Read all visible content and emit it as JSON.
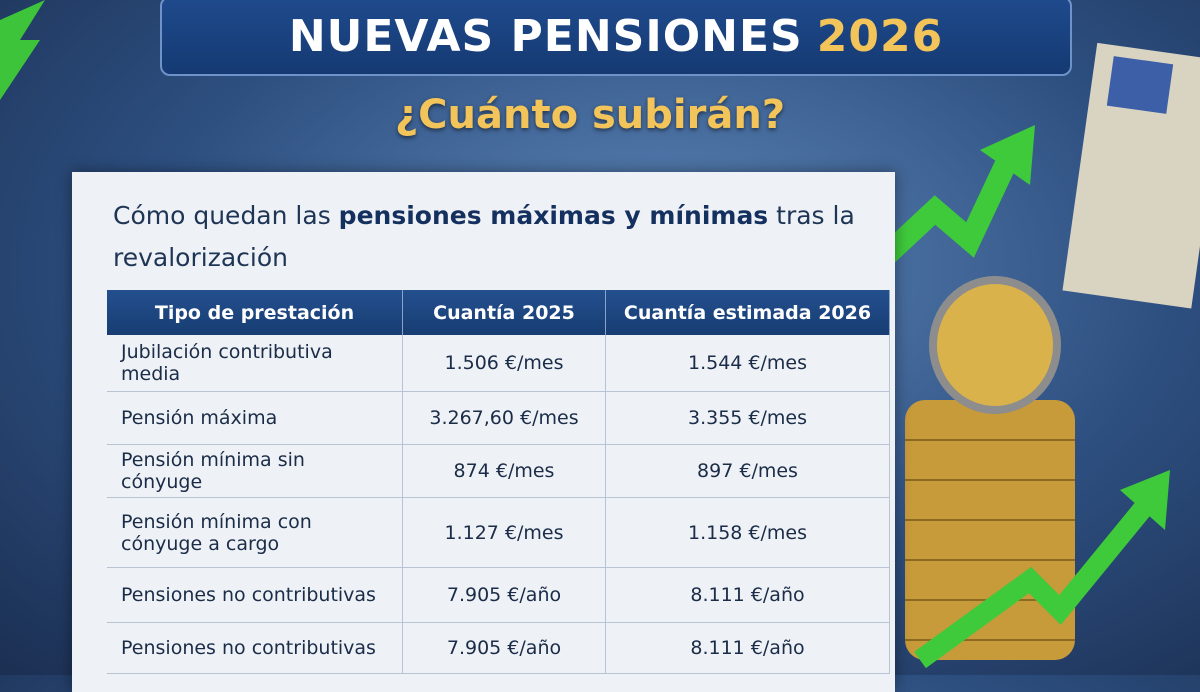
{
  "header": {
    "title": "NUEVAS PENSIONES",
    "year": "2026",
    "subtitle": "¿Cuánto subirán?"
  },
  "intro": {
    "lead": "Cómo quedan las",
    "highlight": "pensiones máximas y mínimas",
    "tail": "tras la revalorización"
  },
  "table": {
    "columns": [
      "Tipo de prestación",
      "Cuantía 2025",
      "Cuantía estimada 2026"
    ],
    "rows": [
      [
        "Jubilación contributiva media",
        "1.506 €/mes",
        "1.544 €/mes"
      ],
      [
        "Pensión máxima",
        "3.267,60 €/mes",
        "3.355 €/mes"
      ],
      [
        "Pensión mínima sin cónyuge",
        "874 €/mes",
        "897 €/mes"
      ],
      [
        "Pensión mínima con cónyuge a cargo",
        "1.127 €/mes",
        "1.158 €/mes"
      ],
      [
        "Pensiones no contributivas",
        "7.905 €/año",
        "8.111 €/año"
      ],
      [
        "Pensiones no contributivas",
        "7.905 €/año",
        "8.111 €/año"
      ]
    ]
  }
}
